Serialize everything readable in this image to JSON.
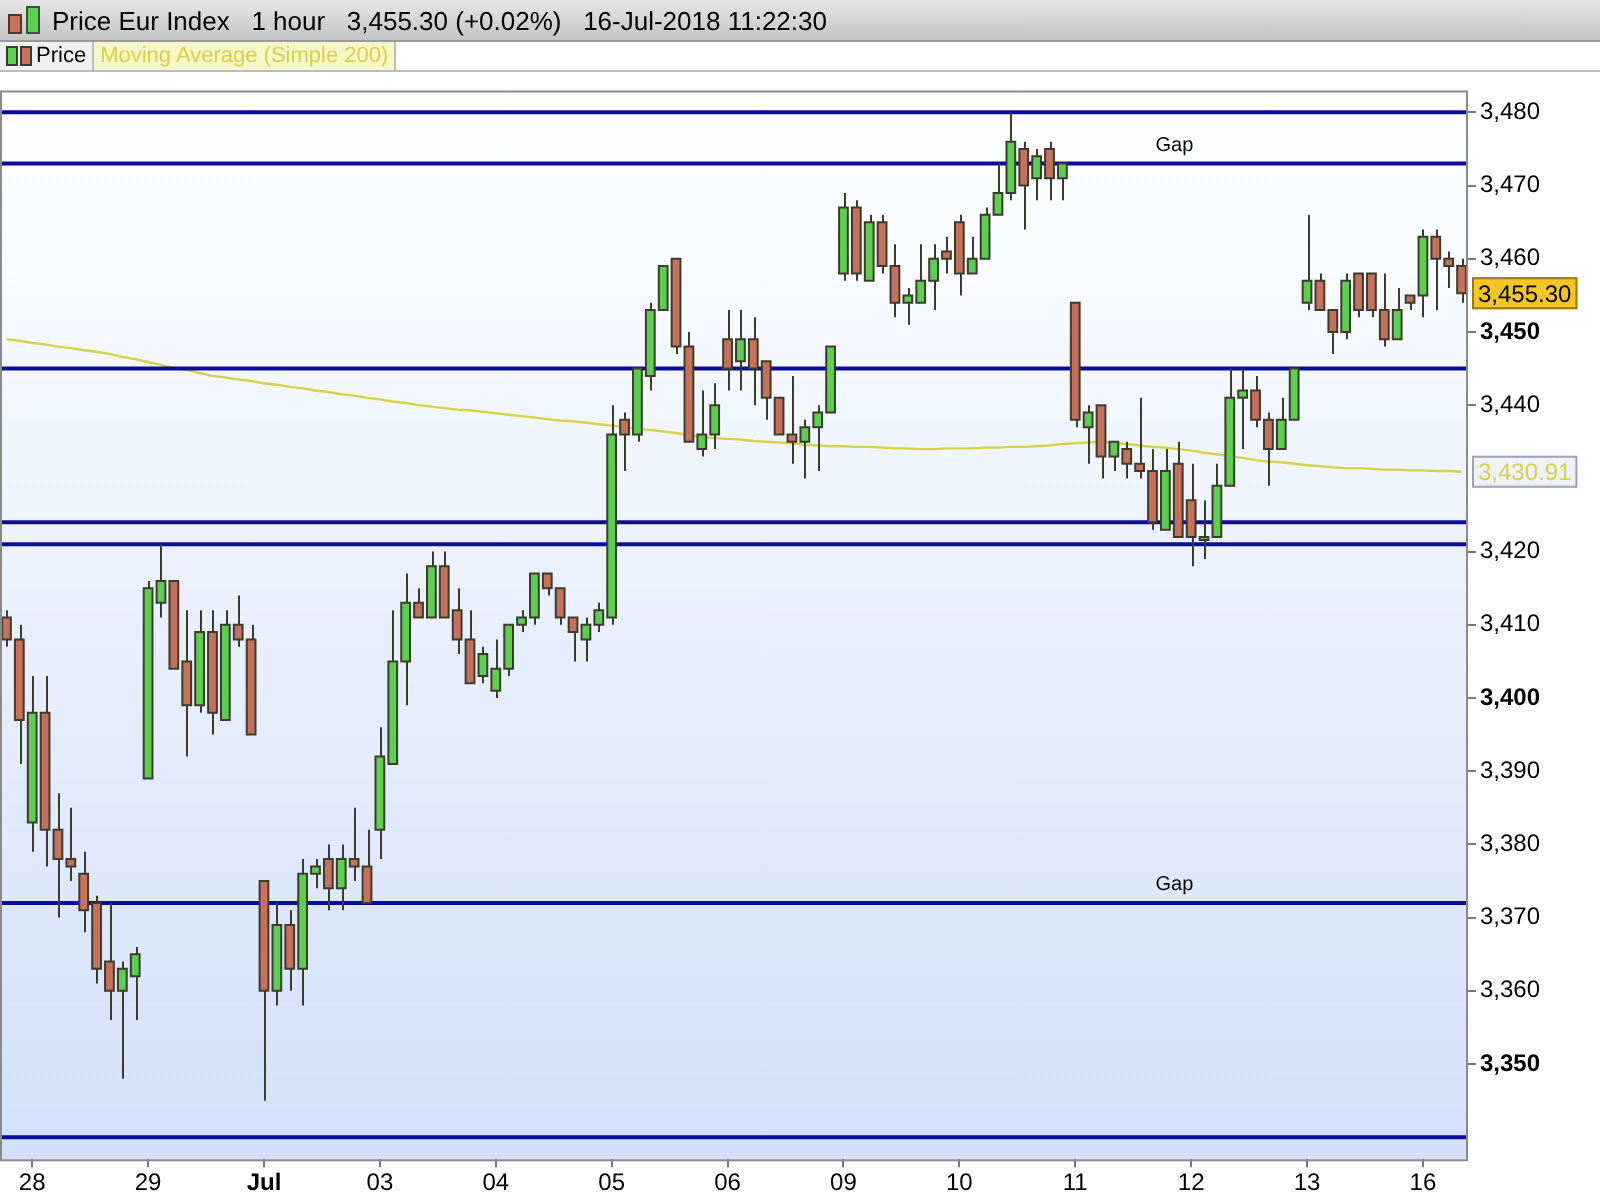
{
  "chart_data": {
    "type": "candlestick",
    "title": "Price Eur Index   1 hour   3,455.30 (+0.02%)   16-Jul-2018 11:22:30",
    "categories": [
      null,
      null,
      "28",
      null,
      null,
      null,
      null,
      null,
      null,
      null,
      null,
      "29",
      null,
      null,
      null,
      null,
      null,
      null,
      null,
      null,
      "Jul",
      null,
      null,
      null,
      null,
      null,
      null,
      null,
      null,
      "03",
      null,
      null,
      null,
      null,
      null,
      null,
      null,
      null,
      "04",
      null,
      null,
      null,
      null,
      null,
      null,
      null,
      null,
      "05",
      null,
      null,
      null,
      null,
      null,
      null,
      null,
      null,
      "06",
      null,
      null,
      null,
      null,
      null,
      null,
      null,
      null,
      "09",
      null,
      null,
      null,
      null,
      null,
      null,
      null,
      null,
      "10",
      null,
      null,
      null,
      null,
      null,
      null,
      null,
      null,
      "11",
      null,
      null,
      null,
      null,
      null,
      null,
      null,
      null,
      "12",
      null,
      null,
      null,
      null,
      null,
      null,
      null,
      null,
      "13",
      null,
      null,
      null,
      null,
      null,
      null,
      null,
      null,
      "16",
      null,
      null,
      null
    ],
    "series": [
      {
        "name": "Price",
        "ohlc": [
          [
            3411,
            3412,
            3407,
            3408
          ],
          [
            3408,
            3410,
            3391,
            3397
          ],
          [
            3383,
            3403,
            3379,
            3398
          ],
          [
            3398,
            3403,
            3377,
            3382
          ],
          [
            3382,
            3387,
            3370,
            3378
          ],
          [
            3378,
            3385,
            3375,
            3377
          ],
          [
            3376,
            3379,
            3368,
            3371
          ],
          [
            3372,
            3373,
            3361,
            3363
          ],
          [
            3364,
            3372,
            3356,
            3360
          ],
          [
            3360,
            3364,
            3348,
            3363
          ],
          [
            3362,
            3366,
            3356,
            3365
          ],
          [
            3389,
            3416,
            3389,
            3415
          ],
          [
            3413,
            3421,
            3411,
            3416
          ],
          [
            3416,
            3416,
            3404,
            3404
          ],
          [
            3405,
            3412,
            3392,
            3399
          ],
          [
            3399,
            3412,
            3398,
            3409
          ],
          [
            3409,
            3412,
            3395,
            3398
          ],
          [
            3397,
            3412,
            3397,
            3410
          ],
          [
            3410,
            3414,
            3407,
            3408
          ],
          [
            3408,
            3410,
            3395,
            3395
          ],
          [
            3375,
            3375,
            3345,
            3360
          ],
          [
            3360,
            3372,
            3358,
            3369
          ],
          [
            3369,
            3371,
            3360,
            3363
          ],
          [
            3363,
            3378,
            3358,
            3376
          ],
          [
            3376,
            3378,
            3374,
            3377
          ],
          [
            3378,
            3380,
            3371,
            3374
          ],
          [
            3374,
            3380,
            3371,
            3378
          ],
          [
            3378,
            3385,
            3375,
            3377
          ],
          [
            3377,
            3382,
            3372,
            3372
          ],
          [
            3382,
            3396,
            3378,
            3392
          ],
          [
            3391,
            3412,
            3391,
            3405
          ],
          [
            3405,
            3417,
            3399,
            3413
          ],
          [
            3413,
            3415,
            3411,
            3411
          ],
          [
            3411,
            3420,
            3411,
            3418
          ],
          [
            3418,
            3420,
            3411,
            3411
          ],
          [
            3412,
            3415,
            3406,
            3408
          ],
          [
            3408,
            3412,
            3402,
            3402
          ],
          [
            3403,
            3407,
            3402,
            3406
          ],
          [
            3401,
            3408,
            3400,
            3404
          ],
          [
            3404,
            3410,
            3403,
            3410
          ],
          [
            3410,
            3412,
            3409,
            3411
          ],
          [
            3411,
            3417,
            3410,
            3417
          ],
          [
            3417,
            3417,
            3414,
            3415
          ],
          [
            3415,
            3415,
            3410,
            3411
          ],
          [
            3411,
            3411,
            3405,
            3409
          ],
          [
            3408,
            3411,
            3405,
            3410
          ],
          [
            3410,
            3413,
            3409,
            3412
          ],
          [
            3411,
            3440,
            3410,
            3436
          ],
          [
            3438,
            3439,
            3431,
            3436
          ],
          [
            3436,
            3445,
            3435,
            3445
          ],
          [
            3444,
            3454,
            3442,
            3453
          ],
          [
            3453,
            3459,
            3453,
            3459
          ],
          [
            3460,
            3460,
            3447,
            3448
          ],
          [
            3448,
            3450,
            3435,
            3435
          ],
          [
            3434,
            3442,
            3433,
            3436
          ],
          [
            3436,
            3443,
            3434,
            3440
          ],
          [
            3449,
            3453,
            3442,
            3445
          ],
          [
            3446,
            3453,
            3442,
            3449
          ],
          [
            3449,
            3452,
            3440,
            3445
          ],
          [
            3446,
            3446,
            3438,
            3441
          ],
          [
            3441,
            3441,
            3436,
            3436
          ],
          [
            3436,
            3444,
            3432,
            3435
          ],
          [
            3435,
            3438,
            3430,
            3437
          ],
          [
            3437,
            3440,
            3431,
            3439
          ],
          [
            3439,
            3448,
            3439,
            3448
          ],
          [
            3458,
            3469,
            3457,
            3467
          ],
          [
            3467,
            3468,
            3457,
            3458
          ],
          [
            3457,
            3466,
            3457,
            3465
          ],
          [
            3465,
            3466,
            3458,
            3459
          ],
          [
            3459,
            3462,
            3452,
            3454
          ],
          [
            3454,
            3456,
            3451,
            3455
          ],
          [
            3454,
            3462,
            3454,
            3457
          ],
          [
            3457,
            3462,
            3453,
            3460
          ],
          [
            3461,
            3463,
            3458,
            3460
          ],
          [
            3465,
            3466,
            3455,
            3458
          ],
          [
            3458,
            3463,
            3458,
            3460
          ],
          [
            3460,
            3467,
            3460,
            3466
          ],
          [
            3466,
            3473,
            3466,
            3469
          ],
          [
            3469,
            3480,
            3468,
            3476
          ],
          [
            3475,
            3476,
            3464,
            3470
          ],
          [
            3471,
            3475,
            3468,
            3474
          ],
          [
            3475,
            3476,
            3468,
            3471
          ],
          [
            3471,
            3473,
            3468,
            3473
          ],
          [
            3454,
            3454,
            3437,
            3438
          ],
          [
            3437,
            3440,
            3432,
            3439
          ],
          [
            3440,
            3440,
            3430,
            3433
          ],
          [
            3433,
            3435,
            3431,
            3435
          ],
          [
            3434,
            3435,
            3430,
            3432
          ],
          [
            3432,
            3441,
            3430,
            3431
          ],
          [
            3431,
            3434,
            3423,
            3424
          ],
          [
            3423,
            3434,
            3423,
            3431
          ],
          [
            3432,
            3435,
            3422,
            3422
          ],
          [
            3427,
            3432,
            3418,
            3422
          ],
          [
            3422,
            3427,
            3419,
            3422
          ],
          [
            3422,
            3432,
            3422,
            3429
          ],
          [
            3429,
            3445,
            3429,
            3441
          ],
          [
            3441,
            3445,
            3434,
            3442
          ],
          [
            3442,
            3444,
            3437,
            3438
          ],
          [
            3438,
            3439,
            3429,
            3434
          ],
          [
            3434,
            3441,
            3434,
            3438
          ],
          [
            3438,
            3445,
            3438,
            3445
          ],
          [
            3454,
            3466,
            3453,
            3457
          ],
          [
            3457,
            3458,
            3453,
            3453
          ],
          [
            3453,
            3453,
            3447,
            3450
          ],
          [
            3450,
            3458,
            3449,
            3457
          ],
          [
            3458,
            3458,
            3452,
            3453
          ],
          [
            3458,
            3458,
            3452,
            3453
          ],
          [
            3453,
            3458,
            3448,
            3449
          ],
          [
            3449,
            3456,
            3449,
            3453
          ],
          [
            3455,
            3455,
            3453,
            3454
          ],
          [
            3455,
            3464,
            3452,
            3463
          ],
          [
            3463,
            3464,
            3453,
            3460
          ],
          [
            3460,
            3461,
            3456,
            3459
          ],
          [
            3459,
            3460,
            3454,
            3455.3
          ]
        ]
      },
      {
        "type": "line",
        "name": "Moving Average (Simple 200)",
        "color": "#d6d24a",
        "values": [
          3449,
          3448.8,
          3448.5,
          3448.3,
          3448,
          3447.8,
          3447.5,
          3447.3,
          3447,
          3446.6,
          3446.3,
          3445.9,
          3445.5,
          3445.1,
          3444.8,
          3444.4,
          3444,
          3443.8,
          3443.5,
          3443.3,
          3443,
          3442.8,
          3442.5,
          3442.3,
          3442,
          3441.8,
          3441.5,
          3441.3,
          3441,
          3440.8,
          3440.5,
          3440.3,
          3440,
          3439.8,
          3439.6,
          3439.4,
          3439.3,
          3439.1,
          3438.9,
          3438.7,
          3438.5,
          3438.3,
          3438.1,
          3437.9,
          3437.8,
          3437.6,
          3437.4,
          3437.2,
          3437,
          3436.8,
          3436.6,
          3436.4,
          3436.2,
          3435.9,
          3435.7,
          3435.5,
          3435.4,
          3435.3,
          3435.1,
          3435,
          3434.9,
          3434.8,
          3434.6,
          3434.5,
          3434.4,
          3434.4,
          3434.3,
          3434.3,
          3434.2,
          3434.1,
          3434.1,
          3434,
          3434,
          3434.1,
          3434.1,
          3434.1,
          3434.2,
          3434.2,
          3434.3,
          3434.3,
          3434.4,
          3434.5,
          3434.7,
          3434.8,
          3434.9,
          3435,
          3434.8,
          3434.7,
          3434.5,
          3434.3,
          3434.2,
          3434,
          3433.8,
          3433.5,
          3433.3,
          3433,
          3432.8,
          3432.5,
          3432.3,
          3432.2,
          3432,
          3431.8,
          3431.7,
          3431.5,
          3431.4,
          3431.4,
          3431.3,
          3431.2,
          3431.2,
          3431.1,
          3431.1,
          3431,
          3431,
          3430.9
        ]
      }
    ],
    "ylim": [
      3337,
      3483
    ],
    "yticks": [
      {
        "value": 3350,
        "label": "3,350"
      },
      {
        "value": 3360,
        "label": "3,360"
      },
      {
        "value": 3370,
        "label": "3,370"
      },
      {
        "value": 3380,
        "label": "3,380"
      },
      {
        "value": 3390,
        "label": "3,390"
      },
      {
        "value": 3400,
        "label": "3,400"
      },
      {
        "value": 3410,
        "label": "3,410"
      },
      {
        "value": 3420,
        "label": "3,420"
      },
      {
        "value": 3440,
        "label": "3,440"
      },
      {
        "value": 3450,
        "label": "3,450"
      },
      {
        "value": 3460,
        "label": "3,460"
      },
      {
        "value": 3470,
        "label": "3,470"
      },
      {
        "value": 3480,
        "label": "3,480"
      }
    ],
    "ref_lines": [
      {
        "axis": "y",
        "value": 3480,
        "color": "#0c0c9c"
      },
      {
        "axis": "y",
        "value": 3473,
        "label": "Gap",
        "color": "#0c0c9c"
      },
      {
        "axis": "y",
        "value": 3445,
        "color": "#0c0c9c"
      },
      {
        "axis": "y",
        "value": 3424,
        "color": "#0c0c9c"
      },
      {
        "axis": "y",
        "value": 3421,
        "color": "#0c0c9c"
      },
      {
        "axis": "y",
        "value": 3372,
        "label": "Gap",
        "color": "#0c0c9c"
      },
      {
        "axis": "y",
        "value": 3340,
        "color": "#0c0c9c"
      }
    ],
    "annotations": [
      "3,455.30",
      "3,430.91"
    ],
    "legend": "top left",
    "grid": false
  }
}
